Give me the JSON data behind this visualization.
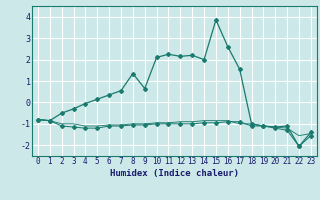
{
  "title": "",
  "xlabel": "Humidex (Indice chaleur)",
  "ylabel": "",
  "background_color": "#cce8e8",
  "grid_color": "#ffffff",
  "line_color": "#1a7a6e",
  "xlim": [
    -0.5,
    23.5
  ],
  "ylim": [
    -2.5,
    4.5
  ],
  "yticks": [
    -2,
    -1,
    0,
    1,
    2,
    3,
    4
  ],
  "xticks": [
    0,
    1,
    2,
    3,
    4,
    5,
    6,
    7,
    8,
    9,
    10,
    11,
    12,
    13,
    14,
    15,
    16,
    17,
    18,
    19,
    20,
    21,
    22,
    23
  ],
  "series1_x": [
    0,
    1,
    2,
    3,
    4,
    5,
    6,
    7,
    8,
    9,
    10,
    11,
    12,
    13,
    14,
    15,
    16,
    17,
    18,
    19,
    20,
    21,
    22,
    23
  ],
  "series1_y": [
    -0.8,
    -0.85,
    -0.5,
    -0.3,
    -0.05,
    0.15,
    0.35,
    0.55,
    1.35,
    0.65,
    2.1,
    2.25,
    2.15,
    2.2,
    2.0,
    3.85,
    2.6,
    1.55,
    -1.0,
    -1.1,
    -1.15,
    -1.1,
    -2.05,
    -1.4
  ],
  "series2_x": [
    0,
    1,
    2,
    3,
    4,
    5,
    6,
    7,
    8,
    9,
    10,
    11,
    12,
    13,
    14,
    15,
    16,
    17,
    18,
    19,
    20,
    21,
    22,
    23
  ],
  "series2_y": [
    -0.8,
    -0.85,
    -1.1,
    -1.15,
    -1.2,
    -1.2,
    -1.1,
    -1.1,
    -1.05,
    -1.05,
    -1.0,
    -1.0,
    -1.0,
    -1.0,
    -0.95,
    -0.95,
    -0.9,
    -0.9,
    -1.1,
    -1.1,
    -1.2,
    -1.3,
    -2.05,
    -1.55
  ],
  "series3_x": [
    0,
    1,
    2,
    3,
    4,
    5,
    6,
    7,
    8,
    9,
    10,
    11,
    12,
    13,
    14,
    15,
    16,
    17,
    18,
    19,
    20,
    21,
    22,
    23
  ],
  "series3_y": [
    -0.8,
    -0.85,
    -1.0,
    -1.0,
    -1.1,
    -1.1,
    -1.05,
    -1.05,
    -1.0,
    -1.0,
    -0.95,
    -0.95,
    -0.9,
    -0.9,
    -0.85,
    -0.85,
    -0.85,
    -1.0,
    -1.0,
    -1.1,
    -1.15,
    -1.2,
    -1.55,
    -1.45
  ],
  "xlabel_fontsize": 6.5,
  "tick_fontsize": 5.5,
  "marker_size": 2.0,
  "line_width": 0.9
}
